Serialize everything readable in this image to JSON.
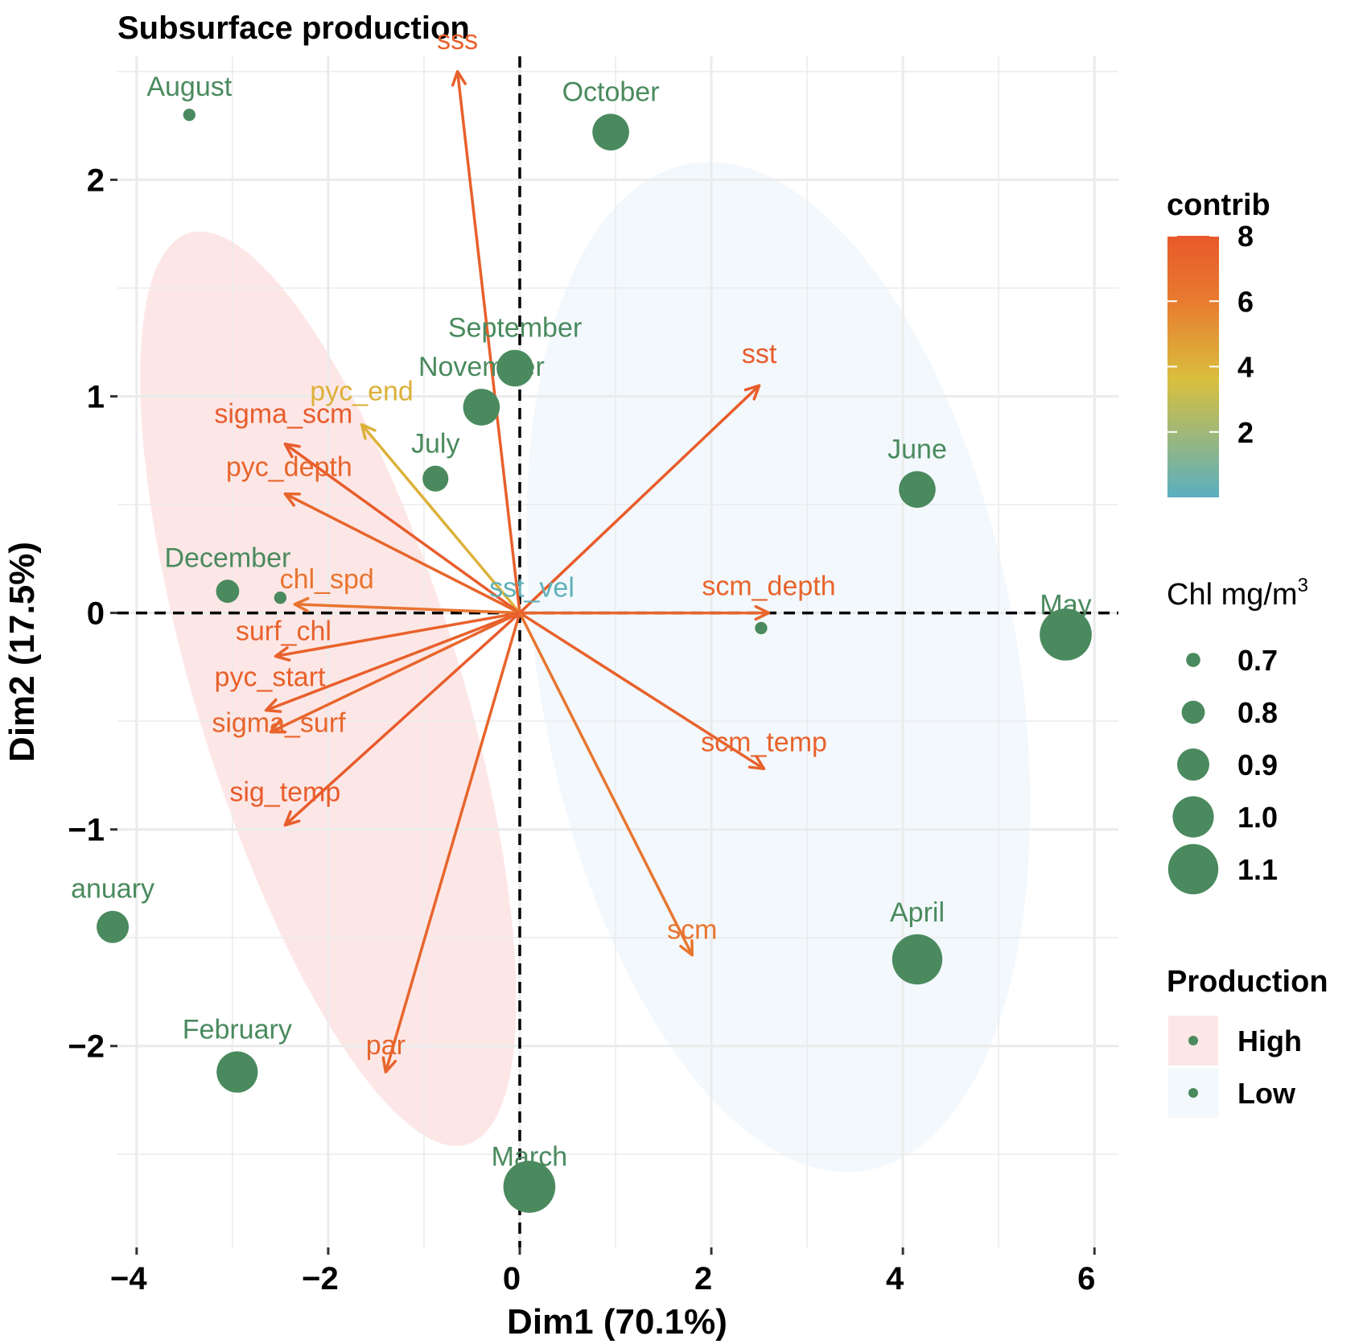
{
  "chart_data": {
    "type": "scatter",
    "title": "Subsurface production",
    "xlabel": "Dim1 (70.1%)",
    "ylabel": "Dim2 (17.5%)",
    "xlim": [
      -4.2,
      6.25
    ],
    "ylim": [
      -2.93,
      2.57
    ],
    "x_ticks": [
      -4,
      -2,
      0,
      2,
      4,
      6
    ],
    "y_ticks": [
      -2,
      -1,
      0,
      1,
      2
    ],
    "x_tick_labels": [
      "−4",
      "−2",
      "0",
      "2",
      "4",
      "6"
    ],
    "y_tick_labels": [
      "−2",
      "−1",
      "0",
      "1",
      "2"
    ],
    "grid": true,
    "reference_lines": {
      "x": 0,
      "y": 0,
      "style": "dashed"
    },
    "point_color": "#4a8a5e",
    "observations": [
      {
        "label": "August",
        "x": -3.45,
        "y": 2.3,
        "chl": 0.68
      },
      {
        "label": "October",
        "x": 0.95,
        "y": 2.22,
        "chl": 0.95
      },
      {
        "label": "September",
        "x": -0.05,
        "y": 1.13,
        "chl": 0.95
      },
      {
        "label": "November",
        "x": -0.4,
        "y": 0.95,
        "chl": 0.95
      },
      {
        "label": "July",
        "x": -0.88,
        "y": 0.62,
        "chl": 0.83
      },
      {
        "label": "June",
        "x": 4.15,
        "y": 0.57,
        "chl": 0.95
      },
      {
        "label": "December",
        "x": -3.05,
        "y": 0.1,
        "chl": 0.8
      },
      {
        "label": "",
        "x": -2.5,
        "y": 0.07,
        "chl": 0.68
      },
      {
        "label": "",
        "x": 2.52,
        "y": -0.07,
        "chl": 0.68
      },
      {
        "label": "May",
        "x": 5.7,
        "y": -0.1,
        "chl": 1.12
      },
      {
        "label": "anuary",
        "x": -4.25,
        "y": -1.45,
        "chl": 0.9
      },
      {
        "label": "April",
        "x": 4.15,
        "y": -1.6,
        "chl": 1.1
      },
      {
        "label": "February",
        "x": -2.95,
        "y": -2.12,
        "chl": 1.0
      },
      {
        "label": "March",
        "x": 0.1,
        "y": -2.65,
        "chl": 1.12
      }
    ],
    "variables": [
      {
        "label": "sss",
        "x": -0.65,
        "y": 2.5,
        "contrib": 7.6
      },
      {
        "label": "sst",
        "x": 2.5,
        "y": 1.05,
        "contrib": 7.8
      },
      {
        "label": "pyc_end",
        "x": -1.65,
        "y": 0.87,
        "contrib": 4.1
      },
      {
        "label": "sigma_scm",
        "x": -2.45,
        "y": 0.78,
        "contrib": 7.8
      },
      {
        "label": "pyc_depth",
        "x": -2.45,
        "y": 0.55,
        "contrib": 7.3
      },
      {
        "label": "chl_spd",
        "x": -2.35,
        "y": 0.04,
        "contrib": 6.4
      },
      {
        "label": "sst_vel",
        "x": 0.0,
        "y": 0.0,
        "contrib": 0.2
      },
      {
        "label": "scm_depth",
        "x": 2.6,
        "y": 0.0,
        "contrib": 7.3
      },
      {
        "label": "surf_chl",
        "x": -2.55,
        "y": -0.2,
        "contrib": 7.5
      },
      {
        "label": "pyc_start",
        "x": -2.65,
        "y": -0.45,
        "contrib": 7.6
      },
      {
        "label": "sigma_surf",
        "x": -2.6,
        "y": -0.55,
        "contrib": 7.3
      },
      {
        "label": "scm_temp",
        "x": 2.55,
        "y": -0.72,
        "contrib": 7.5
      },
      {
        "label": "sig_temp",
        "x": -2.45,
        "y": -0.98,
        "contrib": 7.8
      },
      {
        "label": "scm",
        "x": 1.8,
        "y": -1.58,
        "contrib": 6.3
      },
      {
        "label": "par",
        "x": -1.4,
        "y": -2.12,
        "contrib": 7.3
      }
    ],
    "ellipses": [
      {
        "group": "High",
        "cx": -2.0,
        "cy": -0.35,
        "rx": 1.38,
        "ry": 2.2,
        "angle": -17,
        "color": "#fde7e6"
      },
      {
        "group": "Low",
        "cx": 2.7,
        "cy": -0.25,
        "rx": 2.5,
        "ry": 2.36,
        "angle": -10,
        "color": "#f3f8fd"
      }
    ],
    "legend": {
      "placement": "right",
      "contrib": {
        "title": "contrib",
        "ticks": [
          2,
          4,
          6,
          8
        ],
        "range": [
          0,
          8
        ],
        "colors": [
          "#5aafc0",
          "#d9bf3d",
          "#e87b30",
          "#e8592a"
        ]
      },
      "size": {
        "title": "Chl mg/m",
        "superscript": "3",
        "values": [
          "0.7",
          "0.8",
          "0.9",
          "1.0",
          "1.1"
        ]
      },
      "production": {
        "title": "Production",
        "items": [
          {
            "label": "High",
            "color": "#fde7e6"
          },
          {
            "label": "Low",
            "color": "#f3f8fd"
          }
        ]
      }
    }
  }
}
